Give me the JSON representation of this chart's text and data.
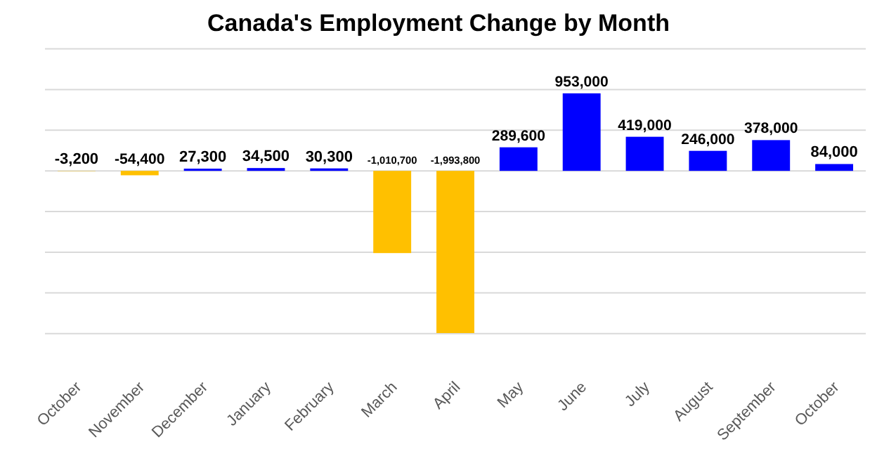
{
  "chart_data": {
    "type": "bar",
    "title": "Canada's Employment Change by Month",
    "categories": [
      "October",
      "November",
      "December",
      "January",
      "February",
      "March",
      "April",
      "May",
      "June",
      "July",
      "August",
      "September",
      "October"
    ],
    "values": [
      -3200,
      -54400,
      27300,
      34500,
      30300,
      -1010700,
      -1993800,
      289600,
      953000,
      419000,
      246000,
      378000,
      84000
    ],
    "value_labels": [
      "-3,200",
      "-54,400",
      "27,300",
      "34,500",
      "30,300",
      "-1,010,700",
      "-1,993,800",
      "289,600",
      "953,000",
      "419,000",
      "246,000",
      "378,000",
      "84,000"
    ],
    "colors": [
      "#ffc000",
      "#ffc000",
      "#0000ff",
      "#0000ff",
      "#0000ff",
      "#ffc000",
      "#ffc000",
      "#0000ff",
      "#0000ff",
      "#0000ff",
      "#0000ff",
      "#0000ff",
      "#0000ff"
    ],
    "tick_labels": "x",
    "grid": "y"
  }
}
